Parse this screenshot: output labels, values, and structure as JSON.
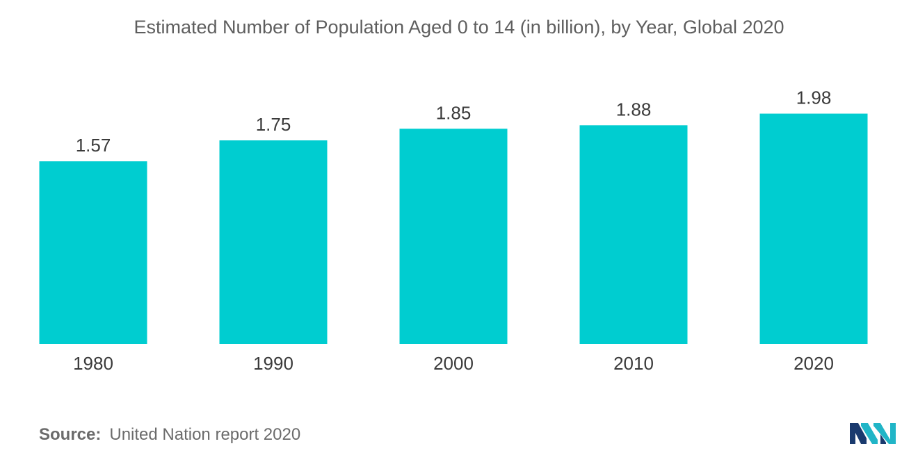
{
  "chart_data": {
    "type": "bar",
    "title": "Estimated Number of Population Aged 0 to 14 (in billion), by Year, Global 2020",
    "categories": [
      "1980",
      "1990",
      "2000",
      "2010",
      "2020"
    ],
    "values": [
      1.57,
      1.75,
      1.85,
      1.88,
      1.98
    ],
    "value_labels": [
      "1.57",
      "1.75",
      "1.85",
      "1.88",
      "1.98"
    ],
    "xlabel": "",
    "ylabel": "",
    "ylim": [
      0,
      2.3
    ],
    "grid": false,
    "legend": "none",
    "bar_color": "#00cdd0"
  },
  "source": {
    "label": "Source:",
    "text": "United Nation report 2020"
  },
  "logo": {
    "icon": "brand-logo-icon",
    "colors": [
      "#1a3a6e",
      "#21b5c7"
    ]
  }
}
